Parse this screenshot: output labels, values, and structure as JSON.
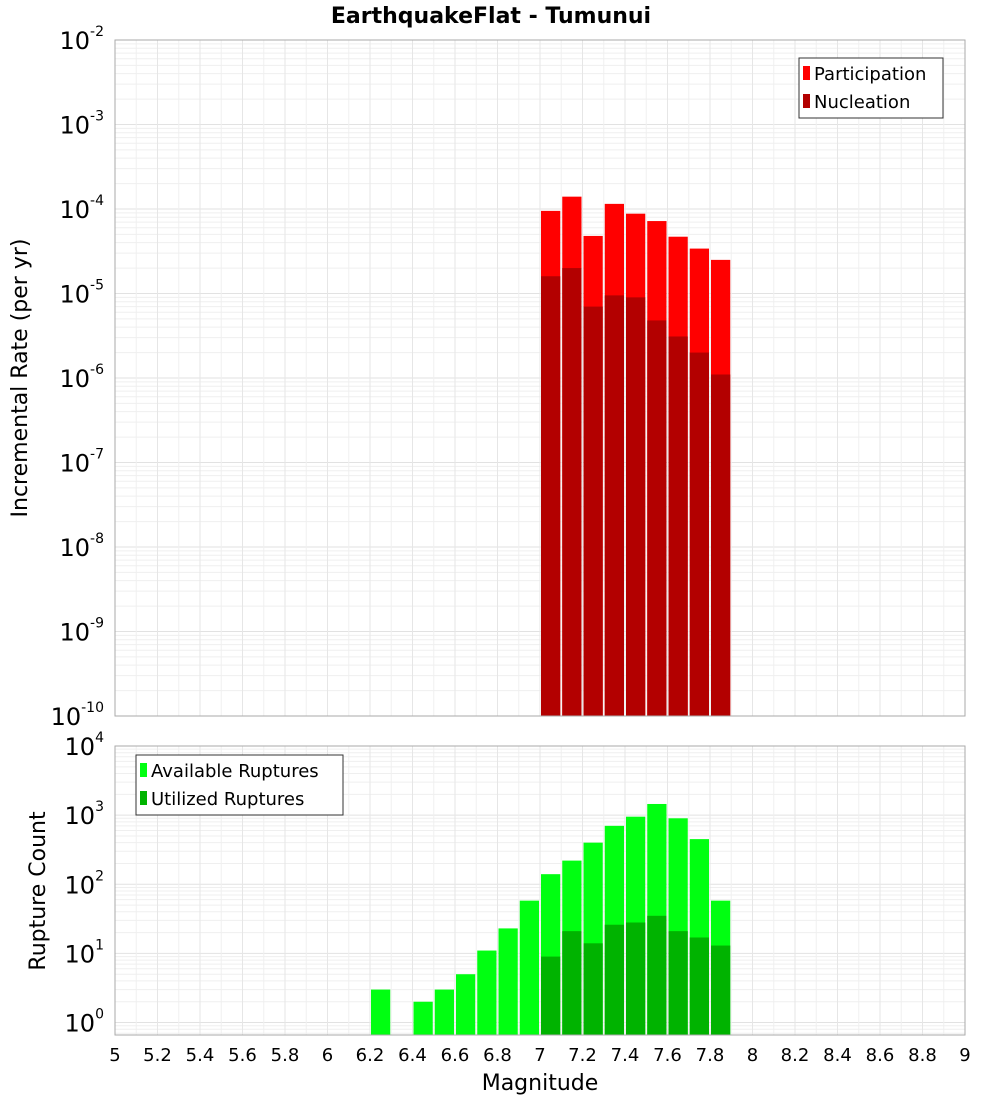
{
  "chart_data": {
    "title": "EarthquakeFlat - Tumunui",
    "type": "bar",
    "xlabel": "Magnitude",
    "xlim": [
      5,
      9
    ],
    "x_ticks": [
      "5",
      "5.2",
      "5.4",
      "5.6",
      "5.8",
      "6",
      "6.2",
      "6.4",
      "6.6",
      "6.8",
      "7",
      "7.2",
      "7.4",
      "7.6",
      "7.8",
      "8",
      "8.2",
      "8.4",
      "8.6",
      "8.8",
      "9"
    ],
    "bin_width": 0.1,
    "panels": [
      {
        "ylabel": "Incremental Rate (per yr)",
        "yscale": "log",
        "ylim_exp": [
          -10,
          -2
        ],
        "y_tick_base": "10",
        "y_tick_exponents": [
          "-2",
          "-3",
          "-4",
          "-5",
          "-6",
          "-7",
          "-8",
          "-9",
          "-10"
        ],
        "legend_position": "top-right",
        "series": [
          {
            "name": "Participation",
            "color": "#ff0000",
            "x": [
              7.05,
              7.15,
              7.25,
              7.35,
              7.45,
              7.55,
              7.65,
              7.75,
              7.85
            ],
            "values": [
              9.5e-05,
              0.00014,
              4.8e-05,
              0.000115,
              8.8e-05,
              7.2e-05,
              4.7e-05,
              3.4e-05,
              2.5e-05
            ]
          },
          {
            "name": "Nucleation",
            "color": "#b30000",
            "x": [
              7.05,
              7.15,
              7.25,
              7.35,
              7.45,
              7.55,
              7.65,
              7.75,
              7.85
            ],
            "values": [
              1.6e-05,
              2e-05,
              7e-06,
              9.5e-06,
              9e-06,
              4.8e-06,
              3.1e-06,
              2e-06,
              1.1e-06
            ]
          }
        ]
      },
      {
        "ylabel": "Rupture Count",
        "yscale": "log",
        "ylim_exp": [
          -0.18,
          4
        ],
        "y_tick_base": "10",
        "y_tick_exponents": [
          "4",
          "3",
          "2",
          "1",
          "0"
        ],
        "legend_position": "top-left",
        "series": [
          {
            "name": "Available Ruptures",
            "color": "#00ff11",
            "x": [
              6.25,
              6.45,
              6.55,
              6.65,
              6.75,
              6.85,
              6.95,
              7.05,
              7.15,
              7.25,
              7.35,
              7.45,
              7.55,
              7.65,
              7.75,
              7.85
            ],
            "values": [
              3,
              2,
              3,
              5,
              11,
              23,
              58,
              140,
              220,
              400,
              700,
              950,
              1450,
              900,
              450,
              58
            ]
          },
          {
            "name": "Utilized Ruptures",
            "color": "#00b300",
            "x": [
              7.05,
              7.15,
              7.25,
              7.35,
              7.45,
              7.55,
              7.65,
              7.75,
              7.85
            ],
            "values": [
              9,
              21,
              14,
              26,
              28,
              35,
              21,
              17,
              13
            ]
          }
        ]
      }
    ]
  }
}
